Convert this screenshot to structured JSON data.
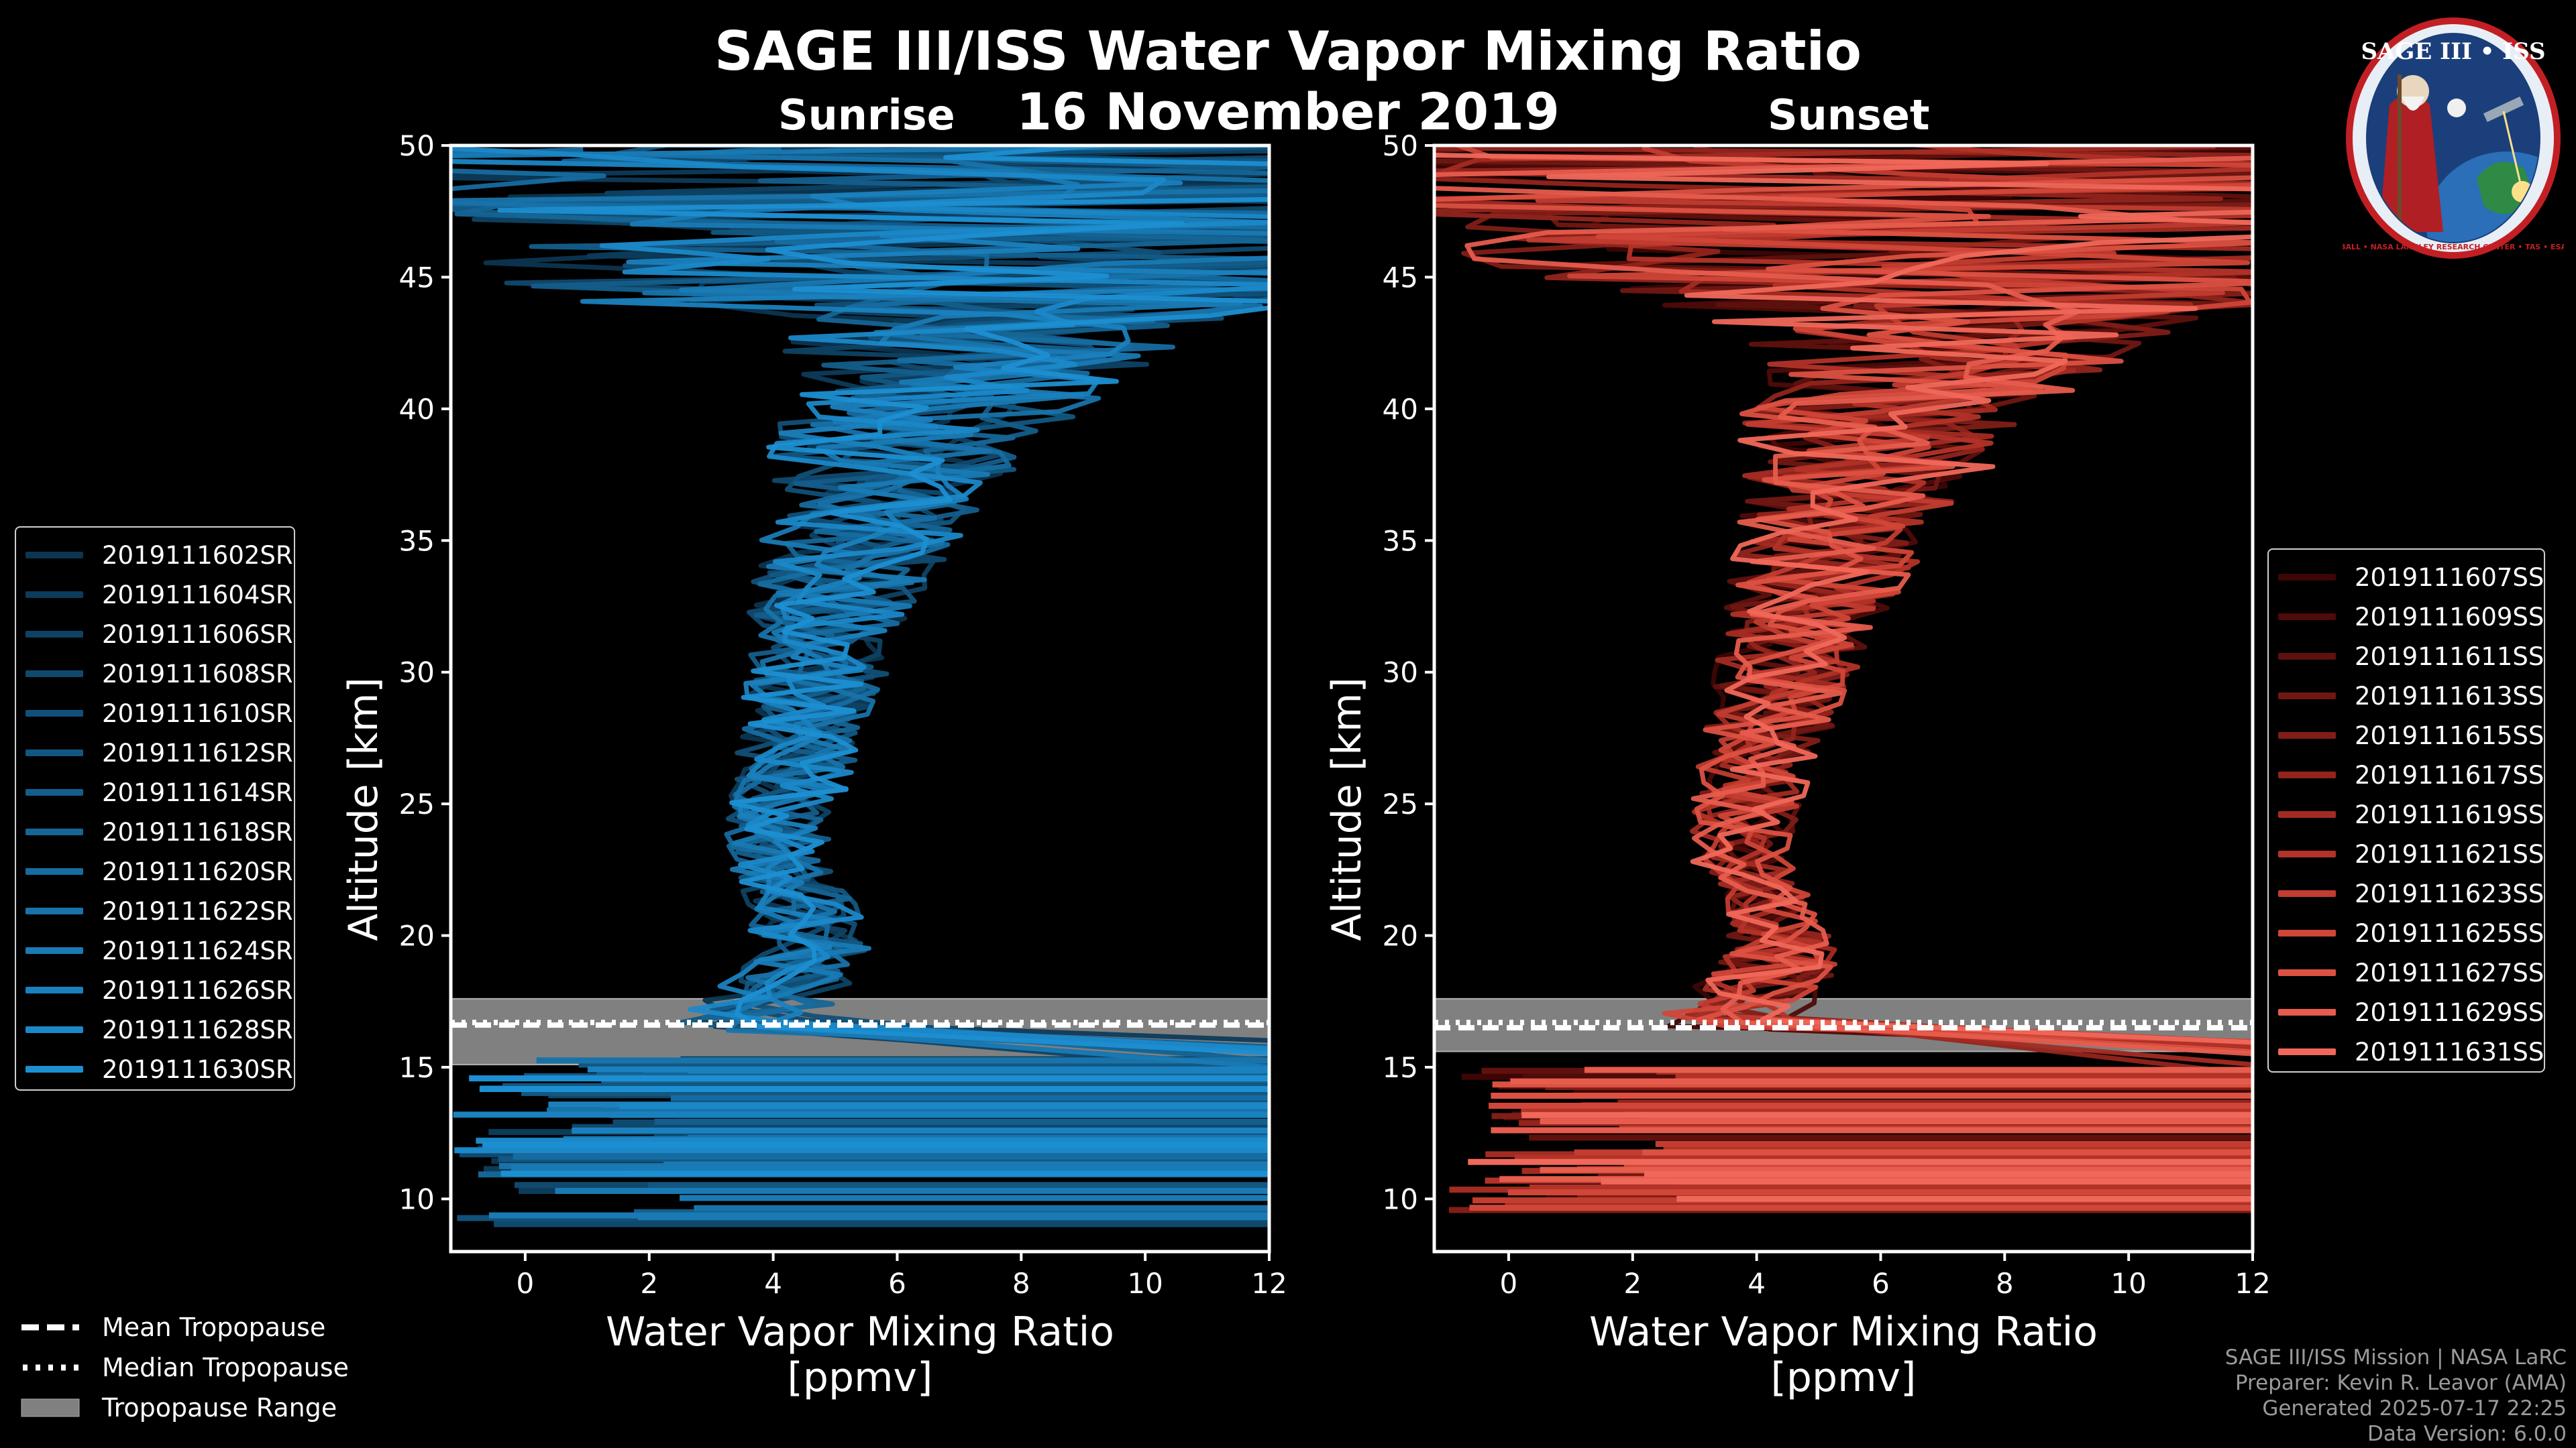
{
  "title": "SAGE III/ISS Water Vapor Mixing Ratio",
  "date": "16 November 2019",
  "panel_labels": {
    "sunrise": "Sunrise",
    "sunset": "Sunset"
  },
  "logo": {
    "text": "SAGE III • ISS",
    "ring_text": "BALL • NASA LANGLEY RESEARCH CENTER • TAS • ESA"
  },
  "colors": {
    "background": "#000000",
    "sunrise_accent": "#1a9be0",
    "sunset_accent": "#f0685a",
    "axes": "#ffffff",
    "tropopause_range": "#808080"
  },
  "chart_data": [
    {
      "type": "line",
      "name": "sunrise-panel",
      "xlabel": "Water Vapor Mixing Ratio\n[ppmv]",
      "ylabel": "Altitude [km]",
      "xlim": [
        -1.2,
        12
      ],
      "ylim": [
        8,
        50
      ],
      "xticks": [
        0,
        2,
        4,
        6,
        8,
        10,
        12
      ],
      "yticks": [
        10,
        15,
        20,
        25,
        30,
        35,
        40,
        45,
        50
      ],
      "tropopause": {
        "mean": 16.6,
        "median": 16.7,
        "range": [
          15.1,
          17.6
        ]
      },
      "series_names": [
        "2019111602SR",
        "2019111604SR",
        "2019111606SR",
        "2019111608SR",
        "2019111610SR",
        "2019111612SR",
        "2019111614SR",
        "2019111618SR",
        "2019111620SR",
        "2019111622SR",
        "2019111624SR",
        "2019111626SR",
        "2019111628SR",
        "2019111630SR"
      ],
      "series_colors": [
        "#0c3550",
        "#0d3b5a",
        "#0e4264",
        "#10496e",
        "#115078",
        "#125782",
        "#145e8c",
        "#156596",
        "#166ca0",
        "#1873aa",
        "#197ab4",
        "#1a81be",
        "#1b88c8",
        "#1c8fd2"
      ],
      "profile_shape": {
        "altitudes": [
          17,
          19,
          21,
          23,
          25,
          27,
          29,
          31,
          33,
          35,
          37,
          39,
          41,
          43
        ],
        "median_ppmv": [
          3.6,
          4.6,
          4.5,
          4.0,
          4.2,
          4.4,
          4.6,
          4.8,
          5.0,
          5.4,
          5.8,
          6.2,
          6.8,
          7.5
        ],
        "spread_ppmv": [
          1.2,
          1.0,
          0.9,
          0.8,
          0.9,
          1.0,
          1.1,
          1.2,
          1.4,
          1.6,
          1.9,
          2.3,
          2.8,
          3.5
        ]
      }
    },
    {
      "type": "line",
      "name": "sunset-panel",
      "xlabel": "Water Vapor Mixing Ratio\n[ppmv]",
      "ylabel": "Altitude [km]",
      "xlim": [
        -1.2,
        12
      ],
      "ylim": [
        8,
        50
      ],
      "xticks": [
        0,
        2,
        4,
        6,
        8,
        10,
        12
      ],
      "yticks": [
        10,
        15,
        20,
        25,
        30,
        35,
        40,
        45,
        50
      ],
      "tropopause": {
        "mean": 16.5,
        "median": 16.7,
        "range": [
          15.6,
          17.6
        ]
      },
      "series_names": [
        "2019111607SS",
        "2019111609SS",
        "2019111611SS",
        "2019111613SS",
        "2019111615SS",
        "2019111617SS",
        "2019111619SS",
        "2019111621SS",
        "2019111623SS",
        "2019111625SS",
        "2019111627SS",
        "2019111629SS",
        "2019111631SS"
      ],
      "series_colors": [
        "#3d0605",
        "#4e0b09",
        "#5f110d",
        "#701712",
        "#811d17",
        "#92241c",
        "#a32b22",
        "#b33328",
        "#c23c30",
        "#d04638",
        "#dc5142",
        "#e65c4d",
        "#f0685a"
      ],
      "profile_shape": {
        "altitudes": [
          17,
          19,
          21,
          23,
          25,
          27,
          29,
          31,
          33,
          35,
          37,
          39,
          41,
          43
        ],
        "median_ppmv": [
          3.6,
          4.4,
          4.2,
          3.7,
          3.8,
          4.1,
          4.3,
          4.6,
          4.9,
          5.2,
          5.6,
          6.0,
          6.6,
          7.2
        ],
        "spread_ppmv": [
          1.2,
          1.0,
          0.8,
          0.8,
          0.9,
          1.0,
          1.1,
          1.2,
          1.4,
          1.6,
          1.9,
          2.3,
          2.8,
          3.5
        ]
      }
    }
  ],
  "bottom_legend": {
    "mean": "Mean Tropopause",
    "median": "Median Tropopause",
    "range": "Tropopause Range"
  },
  "footer": {
    "line1": "SAGE III/ISS Mission | NASA LaRC",
    "line2": "Preparer: Kevin R. Leavor (AMA)",
    "line3": "Generated 2025-07-17 22:25",
    "line4": "Data Version: 6.0.0"
  }
}
